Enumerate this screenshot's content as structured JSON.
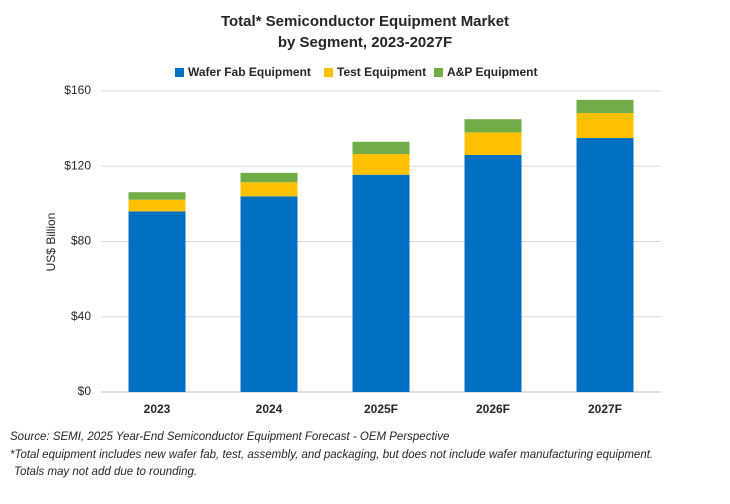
{
  "chart_data": {
    "type": "stacked_bar",
    "title": [
      "Total* Semiconductor Equipment Market",
      "by Segment, 2023-2027F"
    ],
    "y_label": "US$ Billion",
    "categories": [
      "2023",
      "2024",
      "2025F",
      "2026F",
      "2027F"
    ],
    "series": [
      {
        "name": "Wafer Fab Equipment",
        "color": "#0070c0",
        "values": [
          96,
          104,
          115.5,
          126,
          135
        ]
      },
      {
        "name": "Test Equipment",
        "color": "#ffc000",
        "values": [
          6.2,
          7.5,
          11,
          12,
          13.3
        ]
      },
      {
        "name": "A&P Equipment",
        "color": "#70ad47",
        "values": [
          4,
          5,
          6.5,
          7,
          7
        ]
      }
    ],
    "ylim": [
      0,
      160
    ],
    "yticks": [
      {
        "value": 0,
        "label": "$0"
      },
      {
        "value": 40,
        "label": "$40"
      },
      {
        "value": 80,
        "label": "$80"
      },
      {
        "value": 120,
        "label": "$120"
      },
      {
        "value": 160,
        "label": "$160"
      }
    ],
    "grid": true,
    "legend": "top",
    "notes": [
      "Source: SEMI, 2025 Year-End Semiconductor Equipment Forecast - OEM Perspective",
      "*Total equipment includes new wafer fab, test, assembly, and packaging, but does not include wafer manufacturing equipment.",
      "Totals may not add due to rounding."
    ]
  }
}
